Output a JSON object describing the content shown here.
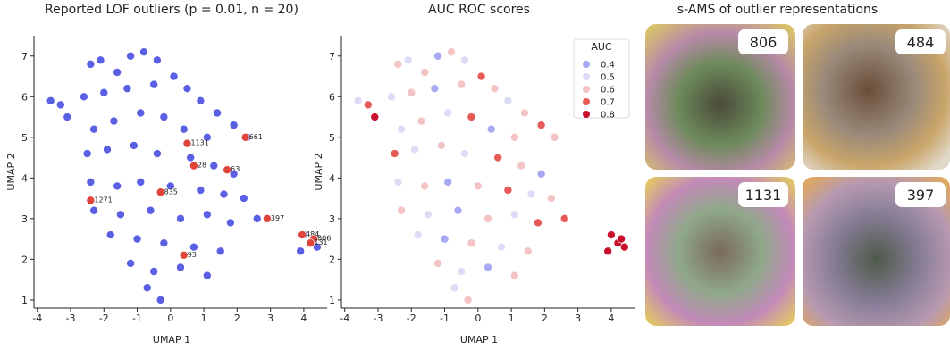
{
  "chart_data": [
    {
      "type": "scatter",
      "title": "Reported LOF outliers (p = 0.01, n = 20)",
      "x_label": "UMAP 1",
      "y_label": "UMAP 2",
      "xlim": [
        -4.1,
        4.7
      ],
      "ylim": [
        0.8,
        7.5
      ],
      "xticks": [
        -4,
        -3,
        -2,
        -1,
        0,
        1,
        2,
        3,
        4
      ],
      "yticks": [
        1,
        2,
        3,
        4,
        5,
        6,
        7
      ],
      "series": [
        {
          "color": "#5b5fe3",
          "x": [
            -3.6,
            -3.3,
            -3.1,
            -2.4,
            -2.1,
            -1.6,
            -1.2,
            -0.8,
            -0.4,
            0.1,
            0.5,
            -2.6,
            -2.0,
            -1.3,
            -0.5,
            0.9,
            1.4,
            1.9,
            2.3,
            -2.3,
            -1.7,
            -0.9,
            -0.2,
            0.4,
            1.1,
            -2.5,
            -1.9,
            -1.1,
            -0.4,
            0.6,
            1.3,
            1.9,
            -2.4,
            -1.6,
            -0.9,
            0.0,
            0.9,
            1.6,
            2.2,
            -2.3,
            -1.5,
            -0.6,
            0.3,
            1.1,
            1.8,
            -1.8,
            -1.0,
            -0.2,
            0.7,
            1.5,
            -1.2,
            -0.5,
            0.3,
            1.1,
            -0.7,
            -0.3,
            2.6,
            4.0,
            4.2,
            4.4,
            4.3,
            3.9
          ],
          "y": [
            5.9,
            5.8,
            5.5,
            6.8,
            6.9,
            6.6,
            7.0,
            7.1,
            6.9,
            6.5,
            6.2,
            6.0,
            6.1,
            6.2,
            6.3,
            5.9,
            5.6,
            5.3,
            5.0,
            5.2,
            5.4,
            5.6,
            5.5,
            5.2,
            5.0,
            4.6,
            4.7,
            4.8,
            4.6,
            4.5,
            4.3,
            4.1,
            3.9,
            3.8,
            3.9,
            3.8,
            3.7,
            3.6,
            3.5,
            3.2,
            3.1,
            3.2,
            3.0,
            3.1,
            2.9,
            2.6,
            2.5,
            2.4,
            2.3,
            2.2,
            1.9,
            1.7,
            1.8,
            1.6,
            1.3,
            1.0,
            3.0,
            2.6,
            2.4,
            2.3,
            2.5,
            2.2
          ]
        },
        {
          "color": "#e0453b",
          "x": [
            2.25,
            0.5,
            0.7,
            1.7,
            -0.3,
            -2.4,
            2.9,
            3.95,
            4.3,
            4.2,
            0.4
          ],
          "y": [
            5.0,
            4.85,
            4.3,
            4.2,
            3.65,
            3.45,
            3.0,
            2.6,
            2.5,
            2.4,
            2.1
          ],
          "labels": [
            "661",
            "1131",
            "28",
            "63",
            "835",
            "1271",
            "397",
            "484",
            "806",
            "131",
            "93"
          ]
        }
      ]
    },
    {
      "type": "scatter",
      "title": "AUC ROC scores",
      "x_label": "UMAP 1",
      "y_label": "UMAP 2",
      "xlim": [
        -4.1,
        4.7
      ],
      "ylim": [
        0.8,
        7.5
      ],
      "xticks": [
        -4,
        -3,
        -2,
        -1,
        0,
        1,
        2,
        3,
        4
      ],
      "yticks": [
        1,
        2,
        3,
        4,
        5,
        6,
        7
      ],
      "legend": {
        "title": "AUC",
        "position": "upper right",
        "levels": [
          0.4,
          0.5,
          0.6,
          0.7,
          0.8
        ],
        "colors": [
          "#a7a9f2",
          "#dcdcf6",
          "#f4c3c3",
          "#e85a58",
          "#c8102e"
        ]
      },
      "series": [
        {
          "x": [
            -3.6,
            -3.3,
            -3.1,
            -2.4,
            -2.1,
            -1.6,
            -1.2,
            -0.8,
            -0.4,
            0.1,
            0.5,
            -2.6,
            -2.0,
            -1.3,
            -0.5,
            0.9,
            1.4,
            1.9,
            2.3,
            -2.3,
            -1.7,
            -0.9,
            -0.2,
            0.4,
            1.1,
            -2.5,
            -1.9,
            -1.1,
            -0.4,
            0.6,
            1.3,
            1.9,
            -2.4,
            -1.6,
            -0.9,
            0.0,
            0.9,
            1.6,
            2.2,
            -2.3,
            -1.5,
            -0.6,
            0.3,
            1.1,
            1.8,
            -1.8,
            -1.0,
            -0.2,
            0.7,
            1.5,
            -1.2,
            -0.5,
            0.3,
            1.1,
            -0.7,
            -0.3,
            2.6,
            4.0,
            4.2,
            4.4,
            4.3,
            3.9
          ],
          "y": [
            5.9,
            5.8,
            5.5,
            6.8,
            6.9,
            6.6,
            7.0,
            7.1,
            6.9,
            6.5,
            6.2,
            6.0,
            6.1,
            6.2,
            6.3,
            5.9,
            5.6,
            5.3,
            5.0,
            5.2,
            5.4,
            5.6,
            5.5,
            5.2,
            5.0,
            4.6,
            4.7,
            4.8,
            4.6,
            4.5,
            4.3,
            4.1,
            3.9,
            3.8,
            3.9,
            3.8,
            3.7,
            3.6,
            3.5,
            3.2,
            3.1,
            3.2,
            3.0,
            3.1,
            2.9,
            2.6,
            2.5,
            2.4,
            2.3,
            2.2,
            1.9,
            1.7,
            1.8,
            1.6,
            1.3,
            1.0,
            3.0,
            2.6,
            2.4,
            2.3,
            2.5,
            2.2
          ],
          "values": [
            0.5,
            0.7,
            0.8,
            0.6,
            0.5,
            0.6,
            0.4,
            0.6,
            0.5,
            0.7,
            0.6,
            0.5,
            0.6,
            0.4,
            0.6,
            0.5,
            0.6,
            0.7,
            0.6,
            0.5,
            0.6,
            0.5,
            0.7,
            0.4,
            0.6,
            0.7,
            0.5,
            0.6,
            0.5,
            0.7,
            0.6,
            0.4,
            0.5,
            0.6,
            0.4,
            0.6,
            0.7,
            0.5,
            0.6,
            0.6,
            0.5,
            0.4,
            0.6,
            0.5,
            0.7,
            0.5,
            0.4,
            0.6,
            0.5,
            0.6,
            0.6,
            0.5,
            0.4,
            0.6,
            0.5,
            0.6,
            0.7,
            0.8,
            0.8,
            0.8,
            0.8,
            0.8
          ]
        }
      ]
    }
  ],
  "image_panel": {
    "title": "s-AMS of outlier representations",
    "labels": [
      "806",
      "484",
      "1131",
      "397"
    ]
  }
}
